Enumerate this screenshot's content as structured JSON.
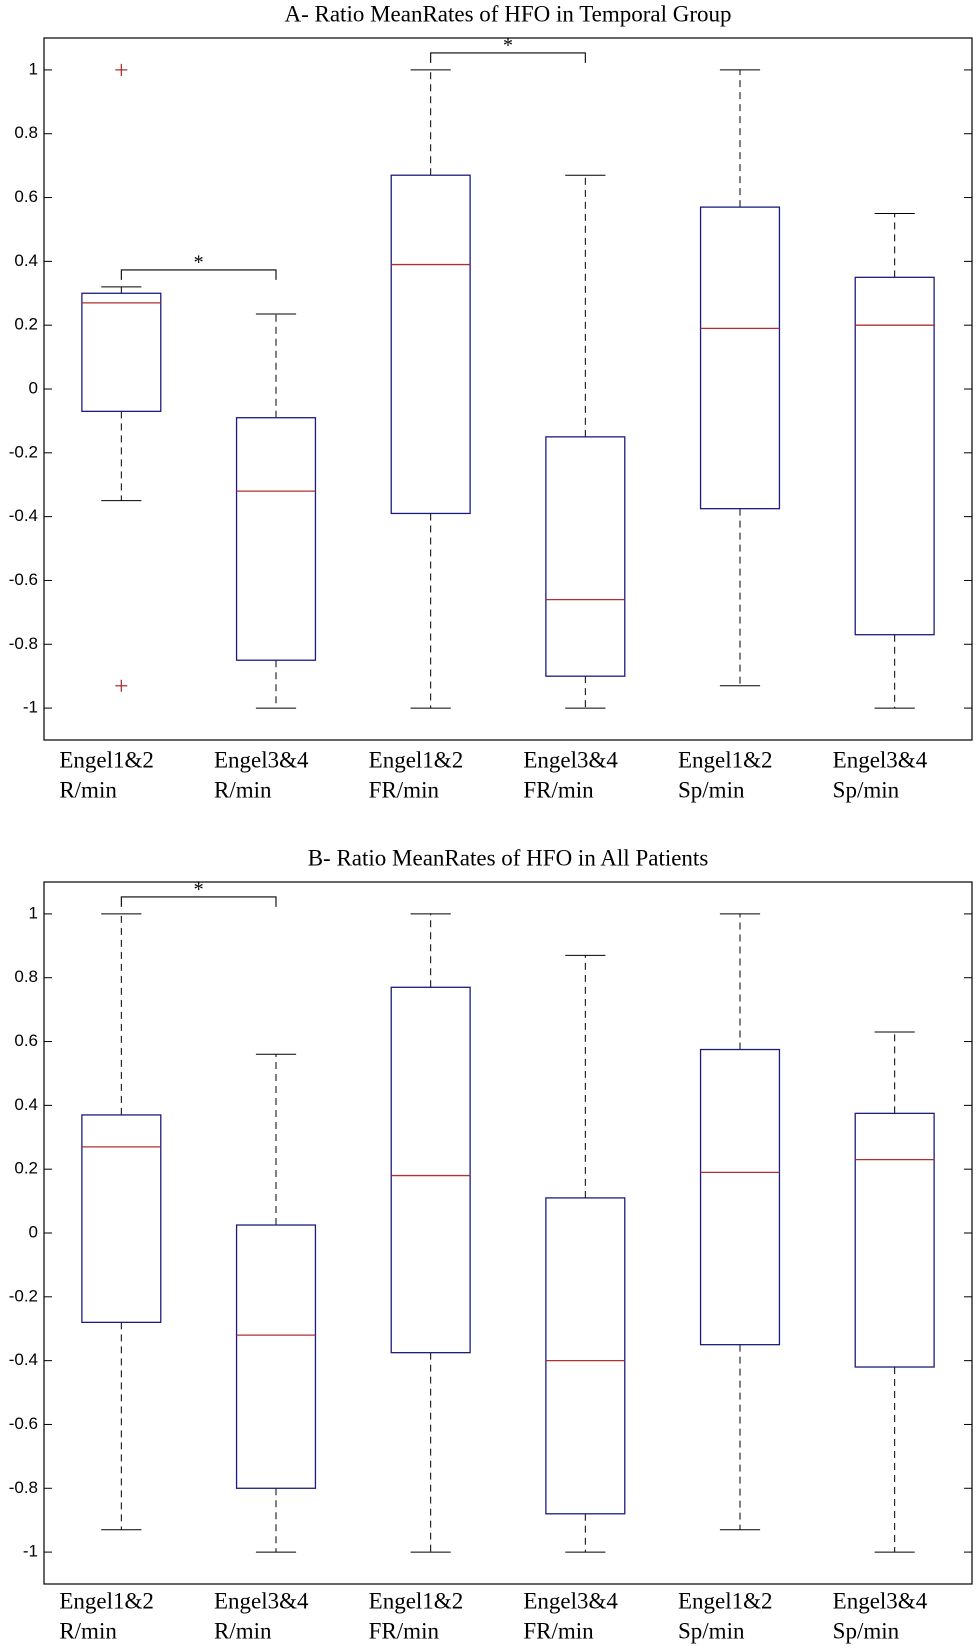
{
  "chart_data": [
    {
      "type": "box",
      "title": "A-    Ratio MeanRates of HFO in Temporal Group",
      "categories": [
        [
          "Engel1&2",
          "R/min"
        ],
        [
          "Engel3&4",
          "R/min"
        ],
        [
          "Engel1&2",
          "FR/min"
        ],
        [
          "Engel3&4",
          "FR/min"
        ],
        [
          "Engel1&2",
          "Sp/min"
        ],
        [
          "Engel3&4",
          "Sp/min"
        ]
      ],
      "boxes": [
        {
          "whisker_low": -0.35,
          "q1": -0.07,
          "median": 0.27,
          "q3": 0.3,
          "whisker_high": 0.32,
          "outliers": [
            1,
            -0.93
          ]
        },
        {
          "whisker_low": -1,
          "q1": -0.85,
          "median": -0.32,
          "q3": -0.09,
          "whisker_high": 0.235,
          "outliers": []
        },
        {
          "whisker_low": -1,
          "q1": -0.39,
          "median": 0.39,
          "q3": 0.67,
          "whisker_high": 1,
          "outliers": []
        },
        {
          "whisker_low": -1,
          "q1": -0.9,
          "median": -0.66,
          "q3": -0.15,
          "whisker_high": 0.67,
          "outliers": []
        },
        {
          "whisker_low": -0.93,
          "q1": -0.375,
          "median": 0.19,
          "q3": 0.57,
          "whisker_high": 1,
          "outliers": []
        },
        {
          "whisker_low": -1,
          "q1": -0.77,
          "median": 0.2,
          "q3": 0.35,
          "whisker_high": 0.55,
          "outliers": []
        }
      ],
      "significance": [
        {
          "label": "*",
          "pair": [
            0,
            1
          ]
        },
        {
          "label": "*",
          "pair": [
            2,
            3
          ]
        }
      ],
      "box_color": "#1c1c80",
      "median_color": "#b03030",
      "outlier_color": "#b03030",
      "ylim": [
        -1.1,
        1.1
      ],
      "yticks": [
        -1,
        -0.8,
        -0.6,
        -0.4,
        -0.2,
        0,
        0.2,
        0.4,
        0.6,
        0.8,
        1
      ]
    },
    {
      "type": "box",
      "title": "B-    Ratio MeanRates of HFO in All Patients",
      "categories": [
        [
          "Engel1&2",
          "R/min"
        ],
        [
          "Engel3&4",
          "R/min"
        ],
        [
          "Engel1&2",
          "FR/min"
        ],
        [
          "Engel3&4",
          "FR/min"
        ],
        [
          "Engel1&2",
          "Sp/min"
        ],
        [
          "Engel3&4",
          "Sp/min"
        ]
      ],
      "boxes": [
        {
          "whisker_low": -0.93,
          "q1": -0.28,
          "median": 0.27,
          "q3": 0.37,
          "whisker_high": 1,
          "outliers": []
        },
        {
          "whisker_low": -1,
          "q1": -0.8,
          "median": -0.32,
          "q3": 0.025,
          "whisker_high": 0.56,
          "outliers": []
        },
        {
          "whisker_low": -1,
          "q1": -0.375,
          "median": 0.18,
          "q3": 0.77,
          "whisker_high": 1,
          "outliers": []
        },
        {
          "whisker_low": -1,
          "q1": -0.88,
          "median": -0.4,
          "q3": 0.11,
          "whisker_high": 0.87,
          "outliers": []
        },
        {
          "whisker_low": -0.93,
          "q1": -0.35,
          "median": 0.19,
          "q3": 0.575,
          "whisker_high": 1,
          "outliers": []
        },
        {
          "whisker_low": -1,
          "q1": -0.42,
          "median": 0.23,
          "q3": 0.375,
          "whisker_high": 0.63,
          "outliers": []
        }
      ],
      "significance": [
        {
          "label": "*",
          "pair": [
            0,
            1
          ]
        }
      ],
      "box_color": "#1c1c80",
      "median_color": "#b03030",
      "outlier_color": "#b03030",
      "ylim": [
        -1.1,
        1.1
      ],
      "yticks": [
        -1,
        -0.8,
        -0.6,
        -0.4,
        -0.2,
        0,
        0.2,
        0.4,
        0.6,
        0.8,
        1
      ]
    }
  ]
}
